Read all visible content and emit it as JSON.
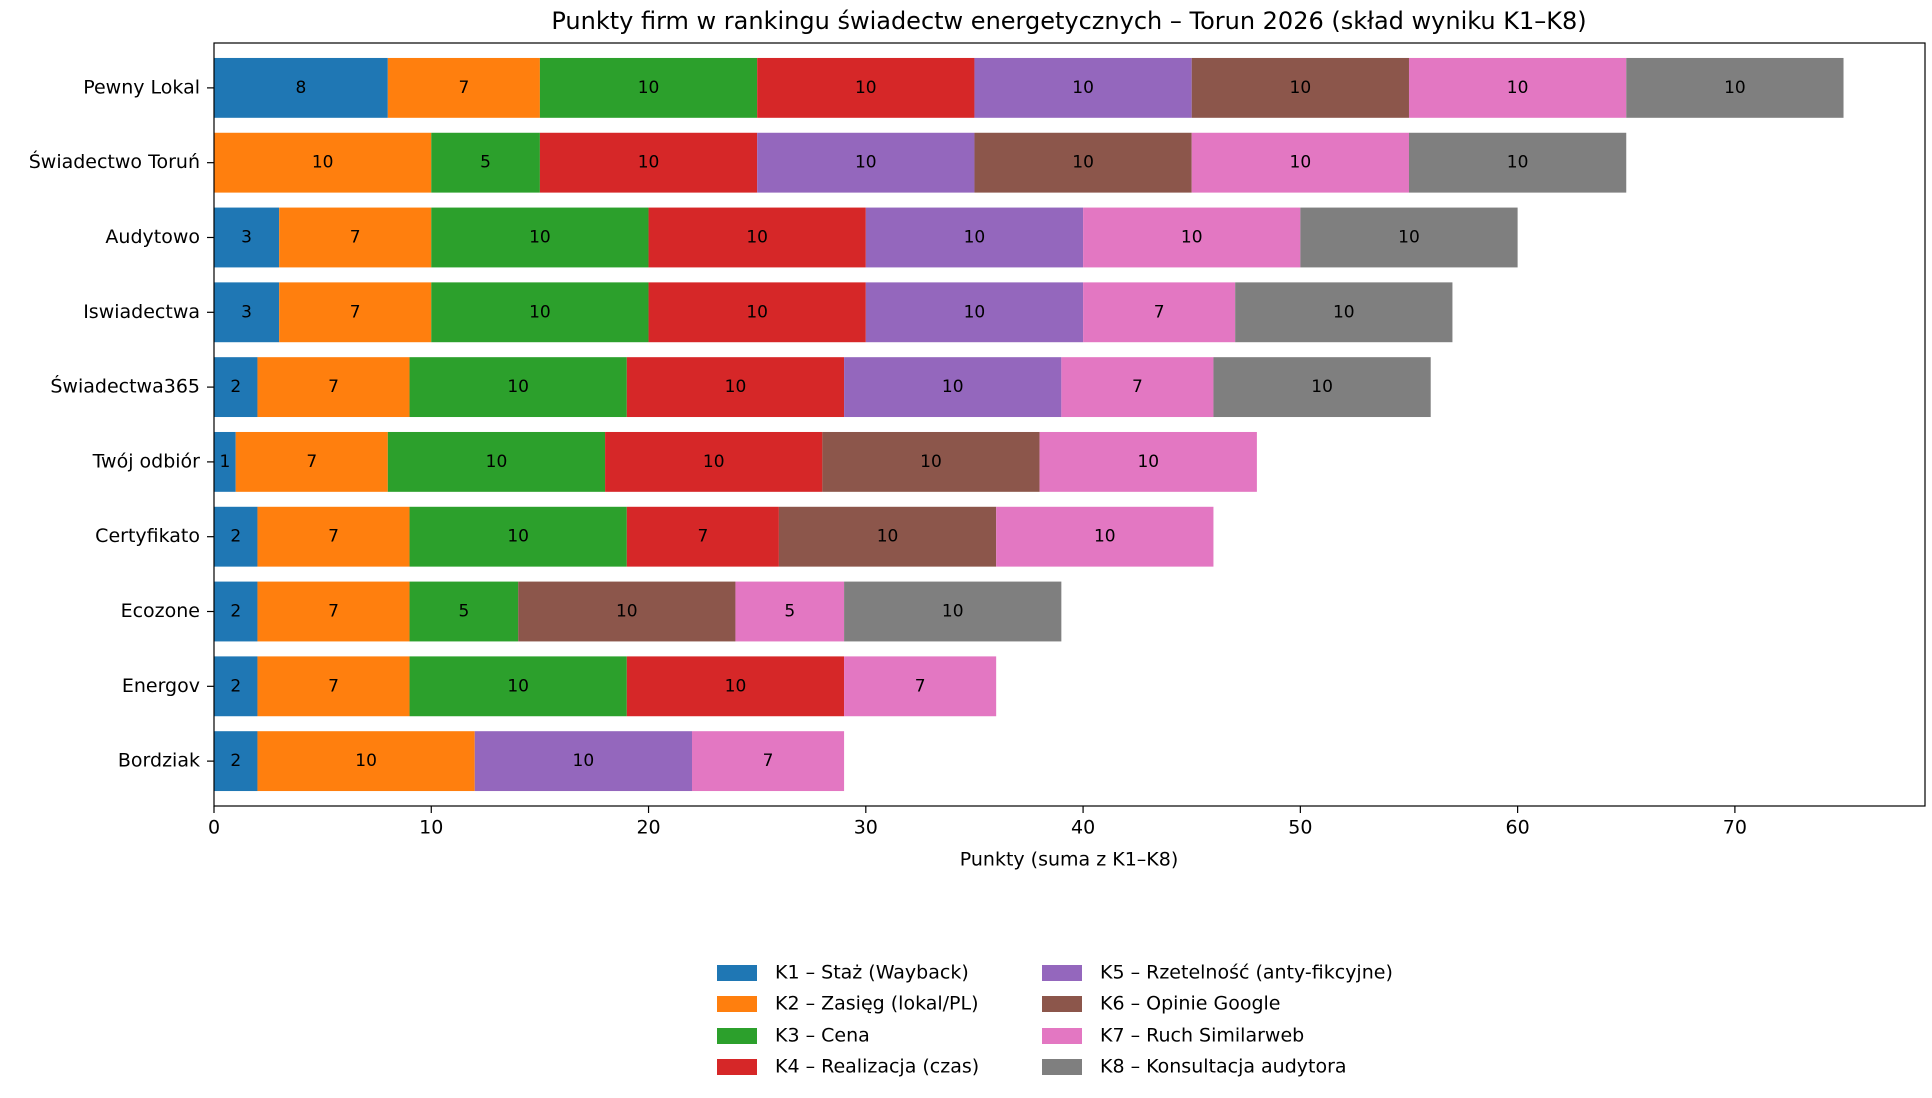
{
  "chart_data": {
    "type": "stacked-barh",
    "title": "Punkty firm w rankingu świadectw energetycznych – Torun 2026 (skład wyniku K1–K8)",
    "xlabel": "Punkty (suma z K1–K8)",
    "categories": [
      "Pewny Lokal",
      "Świadectwo Toruń",
      "Audytowo",
      "Iswiadectwa",
      "Świadectwa365",
      "Twój odbiór",
      "Certyfikato",
      "Ecozone",
      "Energov",
      "Bordziak"
    ],
    "series": [
      {
        "name": "K1 – Staż (Wayback)",
        "color": "#1f77b4",
        "values": [
          8,
          0,
          3,
          3,
          2,
          1,
          2,
          2,
          2,
          2
        ]
      },
      {
        "name": "K2 – Zasięg (lokal/PL)",
        "color": "#ff7f0e",
        "values": [
          7,
          10,
          7,
          7,
          7,
          7,
          7,
          7,
          7,
          10
        ]
      },
      {
        "name": "K3 – Cena",
        "color": "#2ca02c",
        "values": [
          10,
          5,
          10,
          10,
          10,
          10,
          10,
          5,
          10,
          0
        ]
      },
      {
        "name": "K4 – Realizacja (czas)",
        "color": "#d62728",
        "values": [
          10,
          10,
          10,
          10,
          10,
          10,
          7,
          0,
          10,
          0
        ]
      },
      {
        "name": "K5 – Rzetelność (anty-fikcyjne)",
        "color": "#9467bd",
        "values": [
          10,
          10,
          10,
          10,
          10,
          0,
          0,
          0,
          0,
          10
        ]
      },
      {
        "name": "K6 – Opinie Google",
        "color": "#8c564b",
        "values": [
          10,
          10,
          0,
          0,
          0,
          10,
          10,
          10,
          0,
          0
        ]
      },
      {
        "name": "K7 – Ruch Similarweb",
        "color": "#e377c2",
        "values": [
          10,
          10,
          10,
          7,
          7,
          10,
          10,
          5,
          7,
          7
        ]
      },
      {
        "name": "K8 – Konsultacja audytora",
        "color": "#7f7f7f",
        "values": [
          10,
          10,
          10,
          10,
          10,
          0,
          0,
          10,
          0,
          0
        ]
      }
    ],
    "xlim": [
      0,
      78.75
    ],
    "xticks": [
      0,
      10,
      20,
      30,
      40,
      50,
      60,
      70
    ],
    "grid": false
  }
}
